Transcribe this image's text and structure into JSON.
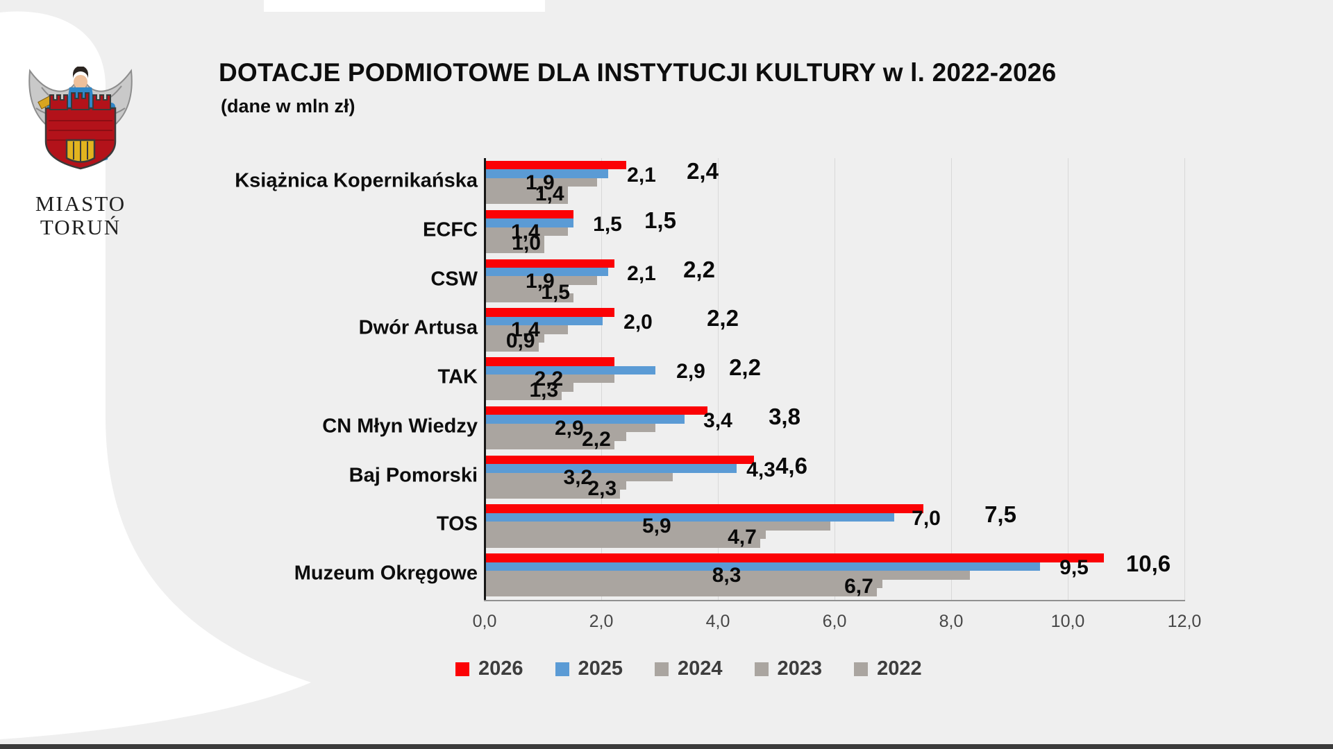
{
  "page": {
    "background_color": "#efefef",
    "accent_white": "#ffffff",
    "bottom_bar_color": "#3b3b3b"
  },
  "logo": {
    "emblem": "torun-coat-of-arms",
    "line1": "MIASTO",
    "line2": "TORUŃ"
  },
  "header": {
    "title": "DOTACJE PODMIOTOWE DLA INSTYTUCJI KULTURY w l. 2022-2026",
    "subtitle": "(dane w mln zł)"
  },
  "chart_data": {
    "type": "bar",
    "orientation": "horizontal",
    "unit": "mln zł",
    "title": "DOTACJE PODMIOTOWE DLA INSTYTUCJI KULTURY w l. 2022-2026",
    "xlabel": "",
    "ylabel": "",
    "xlim": [
      0,
      12
    ],
    "x_ticks": [
      "0,0",
      "2,0",
      "4,0",
      "6,0",
      "8,0",
      "10,0",
      "12,0"
    ],
    "grid": true,
    "legend_position": "bottom",
    "categories": [
      "Książnica Kopernikańska",
      "ECFC",
      "CSW",
      "Dwór Artusa",
      "TAK",
      "CN Młyn Wiedzy",
      "Baj Pomorski",
      "TOS",
      "Muzeum Okręgowe"
    ],
    "series": [
      {
        "name": "2026",
        "color": "#fb0205",
        "label_visible": true,
        "label_position": "outside-end-offset",
        "values": [
          2.4,
          1.5,
          2.2,
          2.2,
          2.2,
          3.8,
          4.6,
          7.5,
          10.6
        ]
      },
      {
        "name": "2025",
        "color": "#5b9bd5",
        "label_visible": true,
        "label_position": "outside-end",
        "values": [
          2.1,
          1.5,
          2.1,
          2.0,
          2.9,
          3.4,
          4.3,
          7.0,
          9.5
        ]
      },
      {
        "name": "2024",
        "color": "#aaa5a0",
        "label_visible": true,
        "label_position": "center",
        "values": [
          1.9,
          1.4,
          1.9,
          1.4,
          2.2,
          2.9,
          3.2,
          5.9,
          8.3
        ]
      },
      {
        "name": "2023",
        "color": "#aaa5a0",
        "label_visible": false,
        "label_position": "hidden",
        "values": [
          1.4,
          1.0,
          1.4,
          1.0,
          1.5,
          2.4,
          2.4,
          4.8,
          6.8
        ]
      },
      {
        "name": "2022",
        "color": "#aaa5a0",
        "label_visible": true,
        "label_position": "inside-end",
        "values": [
          1.4,
          1.0,
          1.5,
          0.9,
          1.3,
          2.2,
          2.3,
          4.7,
          6.7
        ]
      }
    ],
    "axis_color": "#161616",
    "gridline_color": "#d8d8d8",
    "decimal_separator": ","
  },
  "legend": {
    "items": [
      {
        "label": "2026",
        "color": "#fb0205"
      },
      {
        "label": "2025",
        "color": "#5b9bd5"
      },
      {
        "label": "2024",
        "color": "#aaa5a0"
      },
      {
        "label": "2023",
        "color": "#aaa5a0"
      },
      {
        "label": "2022",
        "color": "#aaa5a0"
      }
    ]
  }
}
